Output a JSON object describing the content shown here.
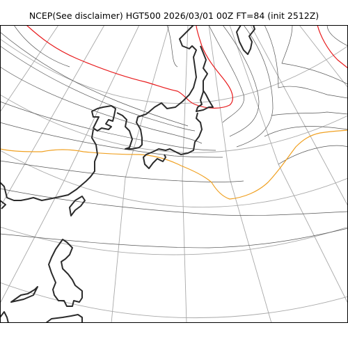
{
  "title": "NCEP(See disclaimer) HGT500 2026/03/01 00Z FT=84 (init 2512Z)",
  "colors": {
    "graticule": "#a8a8a8",
    "contour": "#555555",
    "coastline": "#2b2b2b",
    "contour_warm": "#e8191b",
    "contour_orange": "#f0a020",
    "frame": "#000000"
  }
}
